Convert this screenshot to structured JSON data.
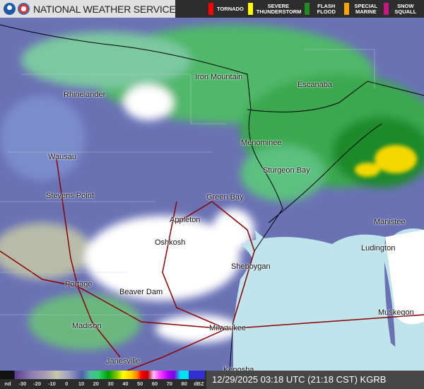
{
  "header": {
    "title": "NATIONAL WEATHER SERVICE",
    "logos": [
      "noaa-logo",
      "nws-logo"
    ]
  },
  "warnings": [
    {
      "label": "TORNADO",
      "color": "#ff0000"
    },
    {
      "label": "SEVERE THUNDERSTORM",
      "color": "#ffff00"
    },
    {
      "label": "FLASH FLOOD",
      "color": "#228b22"
    },
    {
      "label": "SPECIAL MARINE",
      "color": "#ffa500"
    },
    {
      "label": "SNOW SQUALL",
      "color": "#c71585"
    }
  ],
  "cities": [
    "Iron Mountain",
    "Escanaba",
    "Rhinelander",
    "Menominee",
    "Sturgeon Bay",
    "Wausau",
    "Stevens Point",
    "Green Bay",
    "Appleton",
    "Manistee",
    "Oshkosh",
    "Ludington",
    "Sheboygan",
    "Portage",
    "Beaver Dam",
    "Muskegon",
    "Madison",
    "Milwaukee",
    "Janesville",
    "Kenosha"
  ],
  "scale": {
    "labels": [
      "nd",
      "-30",
      "-20",
      "-10",
      "0",
      "10",
      "20",
      "30",
      "40",
      "50",
      "60",
      "70",
      "80",
      "dBZ"
    ]
  },
  "timestamp": "12/29/2025 03:18 UTC (21:18 CST) KGRB"
}
